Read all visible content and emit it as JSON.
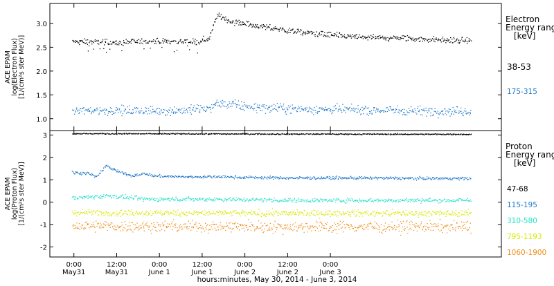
{
  "chart_data": [
    {
      "type": "scatter",
      "panel": "electron",
      "ylabel": "ACE EPAM\nlog(Electron Flux)\n[1/(cm²s ster MeV)]",
      "ylim": [
        0.75,
        3.42
      ],
      "yticks": [
        1.0,
        1.5,
        2.0,
        2.5,
        3.0
      ],
      "legend_title": "Electron\nEnergy ranges\n[keV]",
      "series": [
        {
          "name": "38-53",
          "color": "#000000",
          "t": [
            -0.5,
            4,
            8,
            12,
            16,
            20,
            24,
            28,
            32,
            35,
            38,
            40,
            42,
            44,
            48,
            52,
            56,
            60,
            64,
            68,
            72,
            76,
            80,
            84,
            88,
            92,
            96,
            100,
            104,
            108,
            111.5
          ],
          "v": [
            2.62,
            2.62,
            2.62,
            2.6,
            2.62,
            2.64,
            2.63,
            2.63,
            2.63,
            2.62,
            2.7,
            3.18,
            3.12,
            3.05,
            3.0,
            2.95,
            2.9,
            2.86,
            2.82,
            2.8,
            2.76,
            2.74,
            2.72,
            2.71,
            2.7,
            2.7,
            2.68,
            2.67,
            2.66,
            2.65,
            2.64
          ],
          "noise": 0.06
        },
        {
          "name": "175-315",
          "color": "#1f78c8",
          "t": [
            -0.5,
            10,
            20,
            30,
            38,
            40,
            44,
            50,
            60,
            70,
            80,
            90,
            100,
            111.5
          ],
          "v": [
            1.18,
            1.18,
            1.17,
            1.18,
            1.22,
            1.32,
            1.3,
            1.25,
            1.22,
            1.2,
            1.19,
            1.18,
            1.17,
            1.16
          ],
          "noise": 0.09
        }
      ]
    },
    {
      "type": "scatter",
      "panel": "proton",
      "ylabel": "ACE EPAM\nlog(Proton Flux)\n[1/(cm²s ster MeV)]",
      "ylim": [
        -2.45,
        3.2
      ],
      "yticks": [
        -2,
        -1,
        0,
        1,
        2,
        3
      ],
      "legend_title": "Proton\nEnergy ranges\n[keV]",
      "series": [
        {
          "name": "47-68",
          "color": "#000000",
          "t": [
            -0.5,
            111.5
          ],
          "v": [
            3.08,
            3.05
          ],
          "noise": 0.025
        },
        {
          "name": "115-195",
          "color": "#1f78c8",
          "t": [
            -0.5,
            4,
            6,
            8,
            9,
            10,
            12,
            14,
            16,
            18,
            20,
            22,
            24,
            30,
            40,
            60,
            80,
            100,
            111.5
          ],
          "v": [
            1.35,
            1.3,
            1.15,
            1.45,
            1.7,
            1.55,
            1.4,
            1.3,
            1.2,
            1.25,
            1.3,
            1.2,
            1.18,
            1.15,
            1.15,
            1.1,
            1.1,
            1.08,
            1.08
          ],
          "noise": 0.06
        },
        {
          "name": "310-580",
          "color": "#22e0c8",
          "t": [
            -0.5,
            10,
            20,
            40,
            60,
            80,
            100,
            111.5
          ],
          "v": [
            0.2,
            0.3,
            0.15,
            0.15,
            0.1,
            0.1,
            0.1,
            0.1
          ],
          "noise": 0.09
        },
        {
          "name": "795-1193",
          "color": "#d8e800",
          "t": [
            -0.5,
            50,
            111.5
          ],
          "v": [
            -0.45,
            -0.48,
            -0.48
          ],
          "noise": 0.13
        },
        {
          "name": "1060-1900",
          "color": "#f08c1a",
          "t": [
            -0.5,
            50,
            111.5
          ],
          "v": [
            -1.05,
            -1.08,
            -1.08
          ],
          "noise": 0.24
        }
      ]
    }
  ],
  "x_axis": {
    "range_hours": [
      -6.75,
      120
    ],
    "ticks": [
      {
        "t": 0,
        "top": "0:00",
        "bottom": "May31"
      },
      {
        "t": 12,
        "top": "12:00",
        "bottom": "May31"
      },
      {
        "t": 24,
        "top": "0:00",
        "bottom": "June 1"
      },
      {
        "t": 36,
        "top": "12:00",
        "bottom": "June 1"
      },
      {
        "t": 48,
        "top": "0:00",
        "bottom": "June 2"
      },
      {
        "t": 60,
        "top": "12:00",
        "bottom": "June 2"
      },
      {
        "t": 72,
        "top": "0:00",
        "bottom": "June 3"
      }
    ],
    "xlabel": "hours:minutes, May 30, 2014 - June  3, 2014",
    "data_end_hour": 111.5
  }
}
